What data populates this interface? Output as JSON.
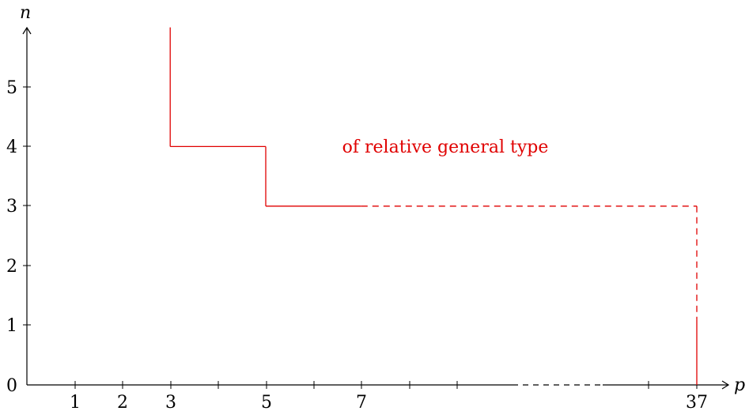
{
  "chart_data": {
    "type": "line",
    "xlabel": "p",
    "ylabel": "n",
    "x_ticks": [
      "1",
      "2",
      "3",
      "5",
      "7",
      "37"
    ],
    "y_ticks": [
      "0",
      "1",
      "2",
      "3",
      "4",
      "5"
    ],
    "annotation": "of relative general type",
    "color": "#e00000",
    "series": [
      {
        "segments": [
          {
            "from": [
              3,
              6
            ],
            "to": [
              3,
              4
            ],
            "style": "solid"
          },
          {
            "from": [
              3,
              4
            ],
            "to": [
              5,
              4
            ],
            "style": "solid"
          },
          {
            "from": [
              5,
              4
            ],
            "to": [
              5,
              3
            ],
            "style": "solid"
          },
          {
            "from": [
              5,
              3
            ],
            "to": [
              7,
              3
            ],
            "style": "solid"
          },
          {
            "from": [
              7,
              3
            ],
            "to": [
              37,
              3
            ],
            "style": "dashed"
          },
          {
            "from": [
              37,
              3
            ],
            "to": [
              37,
              1.1
            ],
            "style": "dashed"
          },
          {
            "from": [
              37,
              1.1
            ],
            "to": [
              37,
              0
            ],
            "style": "solid"
          }
        ]
      }
    ],
    "grid": false,
    "legend": "none"
  }
}
